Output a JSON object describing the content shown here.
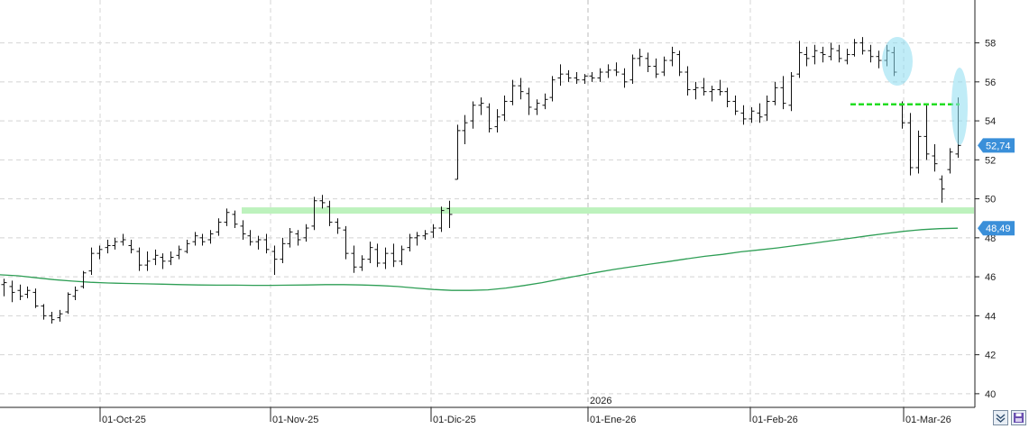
{
  "chart_data": {
    "type": "ohlc",
    "year_marker": "2026",
    "x_tick_labels": [
      "01-Oct-25",
      "01-Nov-25",
      "01-Dic-25",
      "01-Ene-26",
      "01-Feb-26",
      "01-Mar-26"
    ],
    "y_tick_labels": [
      "40",
      "42",
      "44",
      "46",
      "48",
      "50",
      "52",
      "54",
      "56",
      "58"
    ],
    "ylim": [
      39.3,
      60.2
    ],
    "grid": true,
    "price_tags": [
      {
        "value": 52.74,
        "label": "52,74",
        "color": "#3a8fd9"
      },
      {
        "value": 48.49,
        "label": "48,49",
        "color": "#3a8fd9"
      }
    ],
    "support_band": {
      "value": 49.4,
      "color": "#bdf2bd"
    },
    "resistance_line": {
      "value": 54.85,
      "color": "#22dd22"
    },
    "moving_average": {
      "color": "#2e9e55",
      "values": [
        46.1,
        46.05,
        45.95,
        45.85,
        45.78,
        45.72,
        45.68,
        45.66,
        45.64,
        45.62,
        45.6,
        45.58,
        45.57,
        45.57,
        45.56,
        45.56,
        45.57,
        45.58,
        45.6,
        45.6,
        45.58,
        45.55,
        45.5,
        45.42,
        45.35,
        45.3,
        45.3,
        45.33,
        45.42,
        45.55,
        45.7,
        45.88,
        46.05,
        46.22,
        46.38,
        46.52,
        46.65,
        46.78,
        46.92,
        47.05,
        47.15,
        47.28,
        47.38,
        47.48,
        47.6,
        47.72,
        47.85,
        47.97,
        48.1,
        48.22,
        48.33,
        48.42,
        48.47,
        48.49
      ]
    },
    "ohlc": [
      [
        45.6,
        45.9,
        45.0,
        45.7
      ],
      [
        45.5,
        45.8,
        44.7,
        45.2
      ],
      [
        45.3,
        45.6,
        44.8,
        45.0
      ],
      [
        45.1,
        45.5,
        44.9,
        45.3
      ],
      [
        45.2,
        45.4,
        44.4,
        44.5
      ],
      [
        44.5,
        44.6,
        43.8,
        44.0
      ],
      [
        44.0,
        44.2,
        43.6,
        43.8
      ],
      [
        43.9,
        44.3,
        43.7,
        44.1
      ],
      [
        44.2,
        45.2,
        44.1,
        45.1
      ],
      [
        45.0,
        45.5,
        44.8,
        45.3
      ],
      [
        45.5,
        46.3,
        45.4,
        46.2
      ],
      [
        46.3,
        47.5,
        46.1,
        47.2
      ],
      [
        47.2,
        47.6,
        46.9,
        47.4
      ],
      [
        47.5,
        47.9,
        47.2,
        47.6
      ],
      [
        47.6,
        48.0,
        47.4,
        47.8
      ],
      [
        47.8,
        48.2,
        47.6,
        47.9
      ],
      [
        47.6,
        47.9,
        47.2,
        47.4
      ],
      [
        47.3,
        47.5,
        46.3,
        46.6
      ],
      [
        46.6,
        47.3,
        46.3,
        46.8
      ],
      [
        46.9,
        47.4,
        46.6,
        47.1
      ],
      [
        47.0,
        47.2,
        46.4,
        46.8
      ],
      [
        46.8,
        47.3,
        46.6,
        47.0
      ],
      [
        47.1,
        47.6,
        46.9,
        47.4
      ],
      [
        47.3,
        47.9,
        47.2,
        47.7
      ],
      [
        47.8,
        48.3,
        47.6,
        48.1
      ],
      [
        48.0,
        48.2,
        47.6,
        47.8
      ],
      [
        47.9,
        48.4,
        47.7,
        48.2
      ],
      [
        48.3,
        49.0,
        48.1,
        48.8
      ],
      [
        48.8,
        49.5,
        48.6,
        49.3
      ],
      [
        49.2,
        49.4,
        48.5,
        48.7
      ],
      [
        48.6,
        48.9,
        47.9,
        48.2
      ],
      [
        48.1,
        48.4,
        47.6,
        47.8
      ],
      [
        47.8,
        48.1,
        47.4,
        47.9
      ],
      [
        47.9,
        48.2,
        47.2,
        47.4
      ],
      [
        47.3,
        47.6,
        46.1,
        46.9
      ],
      [
        46.9,
        48.0,
        46.7,
        47.7
      ],
      [
        47.7,
        48.5,
        47.5,
        48.3
      ],
      [
        48.2,
        48.4,
        47.6,
        47.9
      ],
      [
        48.0,
        48.7,
        47.8,
        48.5
      ],
      [
        48.6,
        50.1,
        48.4,
        49.9
      ],
      [
        49.9,
        50.2,
        49.5,
        49.8
      ],
      [
        49.6,
        49.9,
        48.6,
        48.8
      ],
      [
        48.8,
        49.0,
        48.2,
        48.5
      ],
      [
        48.4,
        48.6,
        46.9,
        47.2
      ],
      [
        47.2,
        47.6,
        46.2,
        46.5
      ],
      [
        46.5,
        47.1,
        46.3,
        46.9
      ],
      [
        46.9,
        47.8,
        46.7,
        47.5
      ],
      [
        47.4,
        47.7,
        46.5,
        46.7
      ],
      [
        46.7,
        47.5,
        46.4,
        47.2
      ],
      [
        47.2,
        47.7,
        46.5,
        46.8
      ],
      [
        46.8,
        47.6,
        46.6,
        47.4
      ],
      [
        47.5,
        48.2,
        47.3,
        48.0
      ],
      [
        48.0,
        48.3,
        47.6,
        48.1
      ],
      [
        48.1,
        48.4,
        47.9,
        48.2
      ],
      [
        48.3,
        48.7,
        48.0,
        48.5
      ],
      [
        48.5,
        49.6,
        48.3,
        49.4
      ],
      [
        49.5,
        49.9,
        48.5,
        49.2
      ],
      [
        51.0,
        53.8,
        51.0,
        53.5
      ],
      [
        53.5,
        54.3,
        52.8,
        53.9
      ],
      [
        54.0,
        55.0,
        53.6,
        54.8
      ],
      [
        54.8,
        55.2,
        54.3,
        54.9
      ],
      [
        54.7,
        54.9,
        53.4,
        53.6
      ],
      [
        53.7,
        54.6,
        53.4,
        54.2
      ],
      [
        54.3,
        55.3,
        54.0,
        55.0
      ],
      [
        55.0,
        56.1,
        54.8,
        55.8
      ],
      [
        55.8,
        56.2,
        55.1,
        55.5
      ],
      [
        55.4,
        55.7,
        54.3,
        54.7
      ],
      [
        54.6,
        55.1,
        54.3,
        54.9
      ],
      [
        54.8,
        55.4,
        54.6,
        55.1
      ],
      [
        55.2,
        56.3,
        55.0,
        56.1
      ],
      [
        56.2,
        56.9,
        55.8,
        56.4
      ],
      [
        56.4,
        56.6,
        56.0,
        56.2
      ],
      [
        56.2,
        56.5,
        55.9,
        56.1
      ],
      [
        56.1,
        56.4,
        55.9,
        56.3
      ],
      [
        56.3,
        56.5,
        56.0,
        56.2
      ],
      [
        56.2,
        56.7,
        56.0,
        56.5
      ],
      [
        56.5,
        56.9,
        56.2,
        56.6
      ],
      [
        56.6,
        57.0,
        56.3,
        56.5
      ],
      [
        56.4,
        56.7,
        55.7,
        56.0
      ],
      [
        56.1,
        57.4,
        55.9,
        57.2
      ],
      [
        57.2,
        57.7,
        56.8,
        57.3
      ],
      [
        57.2,
        57.5,
        56.5,
        56.8
      ],
      [
        56.8,
        57.2,
        56.2,
        56.4
      ],
      [
        56.5,
        57.3,
        56.3,
        57.1
      ],
      [
        57.1,
        57.8,
        56.8,
        57.5
      ],
      [
        57.4,
        57.6,
        56.3,
        56.5
      ],
      [
        56.5,
        56.8,
        55.3,
        55.6
      ],
      [
        55.6,
        56.0,
        55.1,
        55.7
      ],
      [
        55.7,
        56.2,
        55.3,
        55.5
      ],
      [
        55.5,
        55.8,
        55.0,
        55.6
      ],
      [
        55.6,
        56.1,
        55.3,
        55.5
      ],
      [
        55.5,
        55.7,
        54.7,
        55.0
      ],
      [
        55.0,
        55.3,
        54.3,
        54.5
      ],
      [
        54.4,
        54.8,
        53.8,
        54.1
      ],
      [
        54.1,
        54.7,
        53.9,
        54.5
      ],
      [
        54.4,
        54.9,
        53.9,
        54.2
      ],
      [
        54.3,
        55.3,
        54.0,
        55.0
      ],
      [
        55.0,
        56.0,
        54.8,
        55.7
      ],
      [
        55.7,
        56.3,
        54.6,
        54.9
      ],
      [
        54.8,
        56.5,
        54.5,
        56.3
      ],
      [
        56.4,
        58.1,
        56.2,
        57.5
      ],
      [
        57.4,
        57.8,
        56.8,
        57.2
      ],
      [
        57.3,
        57.9,
        56.9,
        57.6
      ],
      [
        57.5,
        57.8,
        57.0,
        57.4
      ],
      [
        57.3,
        58.0,
        57.1,
        57.7
      ],
      [
        57.6,
        57.9,
        57.0,
        57.2
      ],
      [
        57.1,
        57.7,
        56.9,
        57.4
      ],
      [
        57.4,
        58.2,
        57.3,
        58.0
      ],
      [
        58.0,
        58.3,
        57.4,
        57.6
      ],
      [
        57.6,
        57.9,
        57.0,
        57.3
      ],
      [
        57.3,
        57.6,
        56.7,
        57.1
      ],
      [
        57.1,
        57.9,
        56.8,
        57.6
      ],
      [
        57.5,
        57.8,
        56.3,
        56.5
      ],
      [
        54.8,
        55.0,
        53.6,
        53.9
      ],
      [
        53.9,
        54.4,
        51.2,
        51.6
      ],
      [
        51.6,
        53.5,
        51.3,
        53.2
      ],
      [
        53.2,
        54.8,
        52.0,
        52.3
      ],
      [
        52.2,
        52.8,
        51.4,
        51.8
      ],
      [
        51.0,
        51.2,
        49.8,
        50.5
      ],
      [
        51.5,
        52.6,
        51.3,
        52.4
      ],
      [
        52.3,
        55.2,
        52.1,
        52.74
      ]
    ]
  }
}
